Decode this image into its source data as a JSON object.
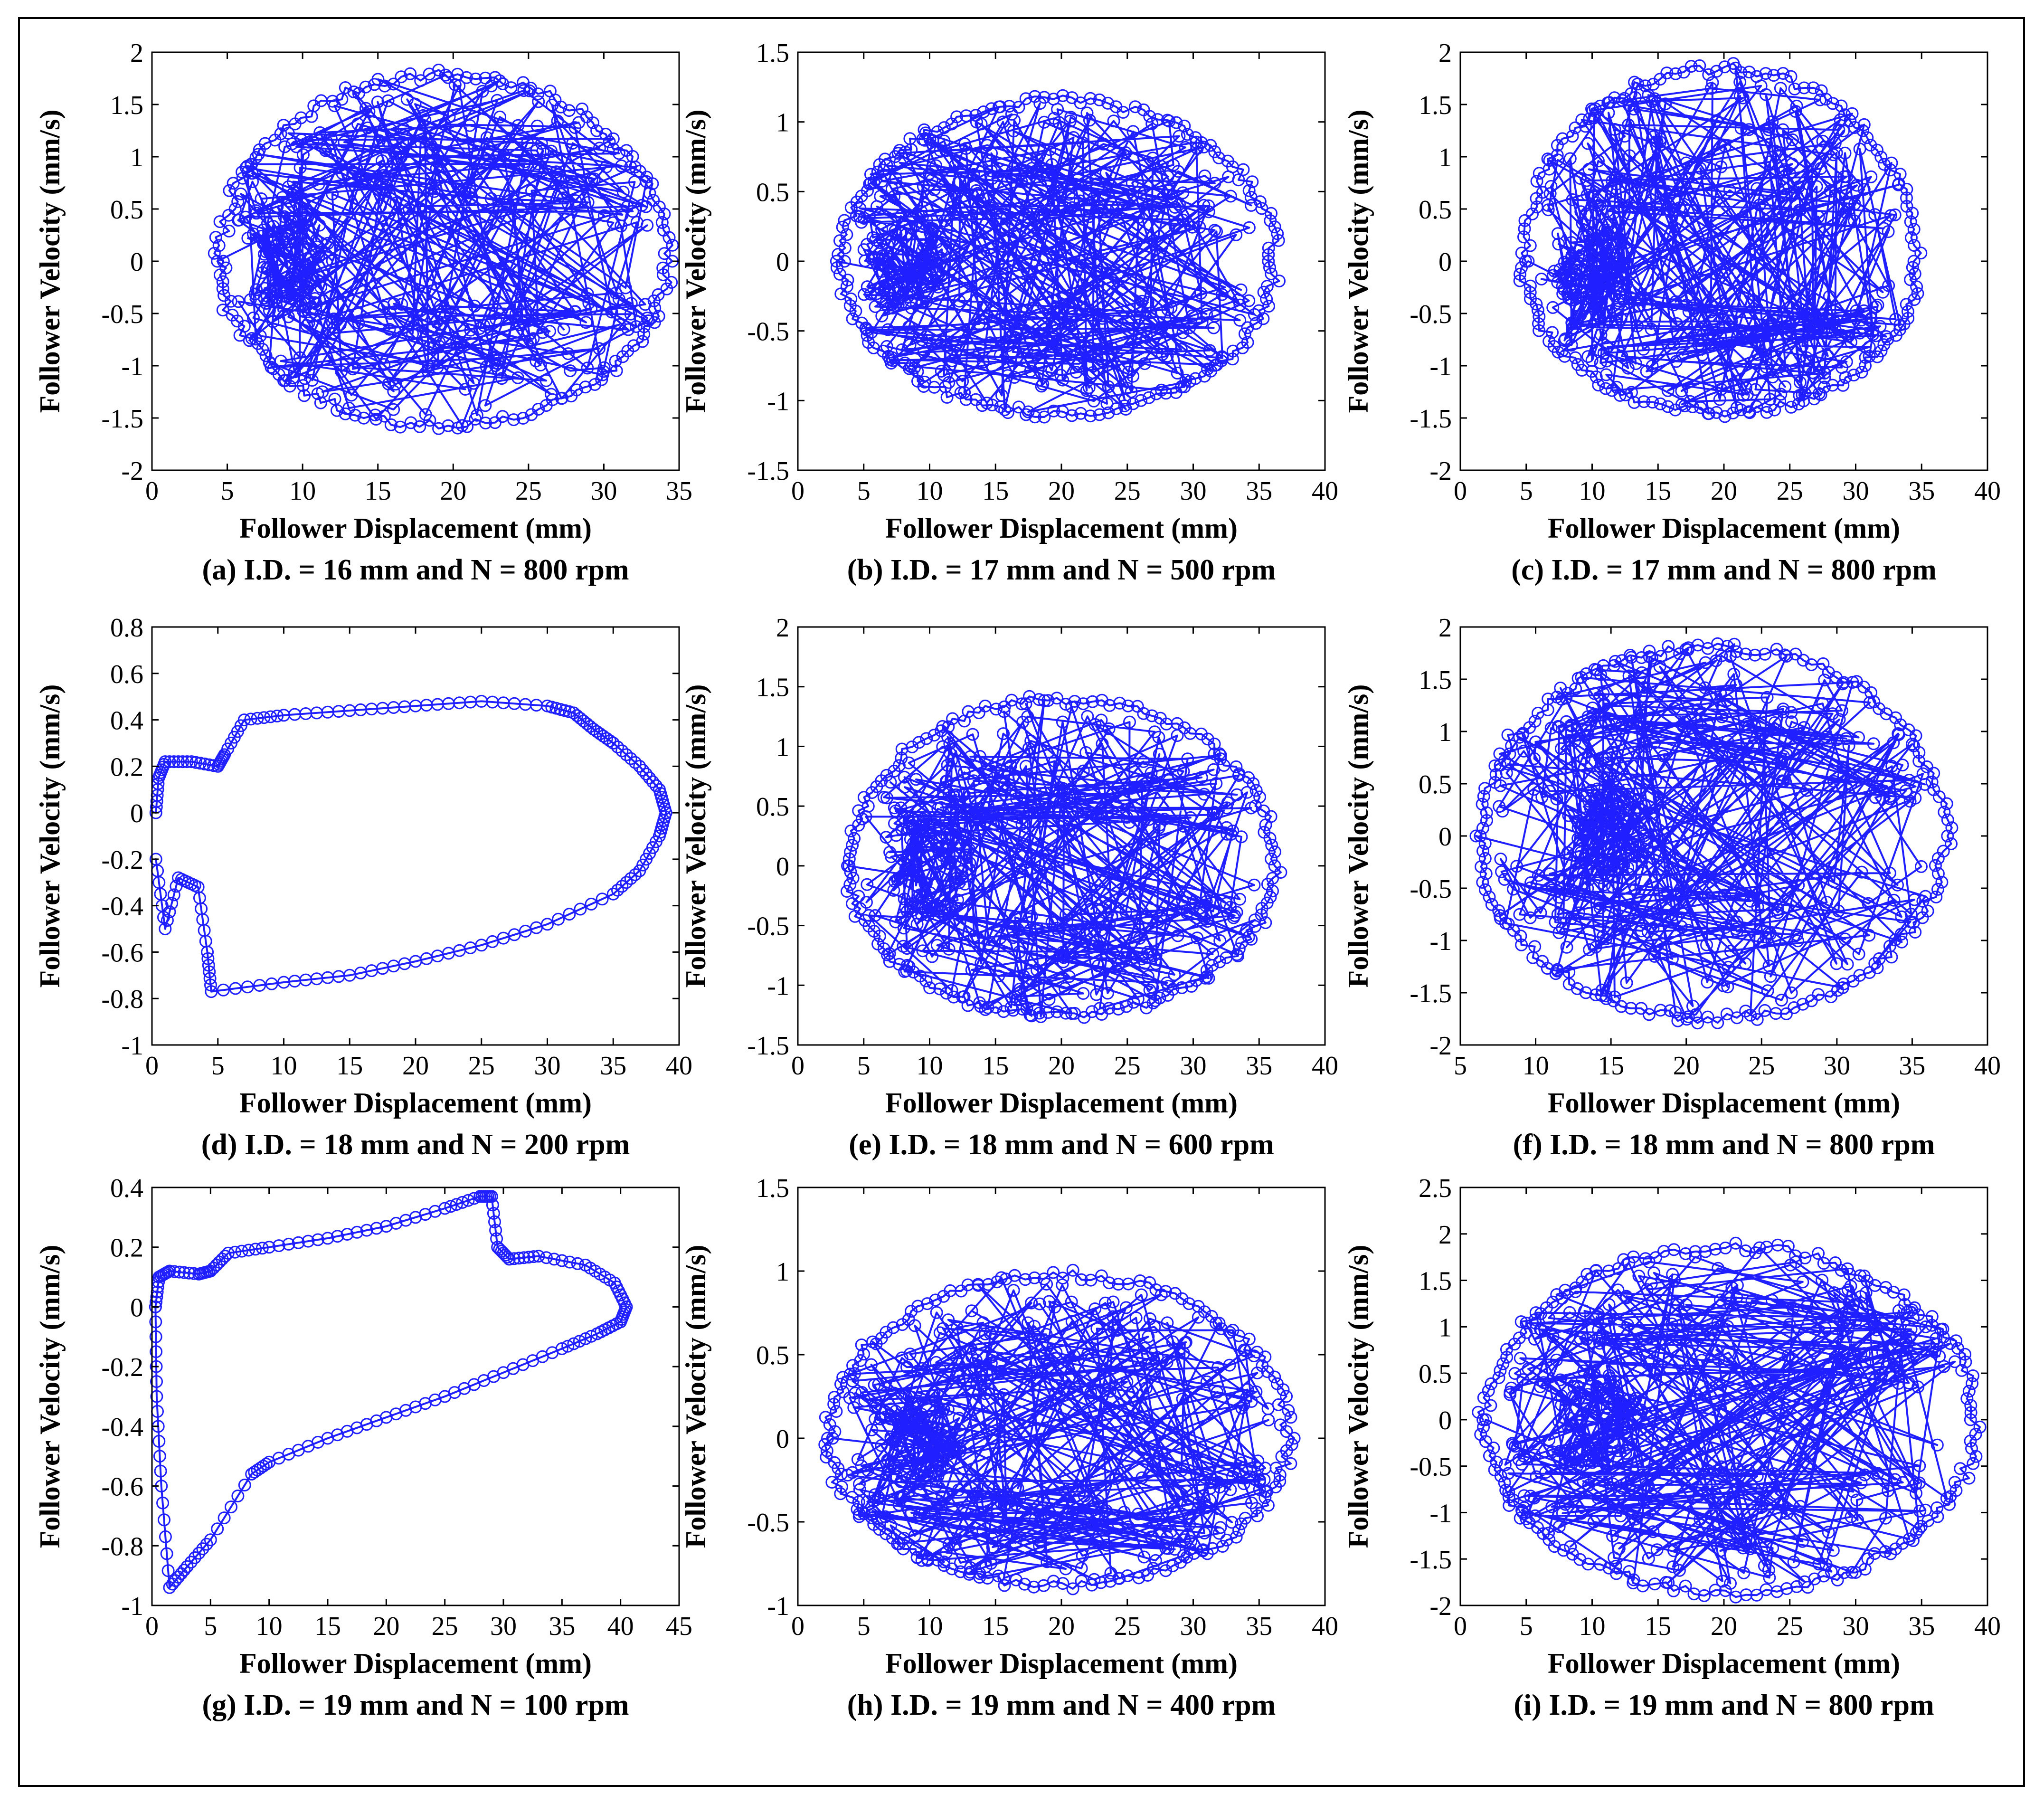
{
  "figure": {
    "line_color": "#1f1fff"
  },
  "chart_data": [
    {
      "id": "a",
      "type": "line",
      "caption": "(a) I.D. = 16 mm and N = 800 rpm",
      "xlabel": "Follower Displacement (mm)",
      "ylabel": "Follower Velocity (mm/s)",
      "xlim": [
        0,
        35
      ],
      "ylim": [
        -2,
        2
      ],
      "xticks": [
        0,
        5,
        10,
        15,
        20,
        25,
        30,
        35
      ],
      "yticks": [
        -2,
        -1.5,
        -1,
        -0.5,
        0,
        0.5,
        1,
        1.5,
        2
      ],
      "ytick_labels": [
        "-2",
        "-1.5",
        "-1",
        "-0.5",
        "0",
        "0.5",
        "1",
        "1.5",
        "2"
      ],
      "x_range": [
        4.2,
        34.5
      ],
      "vel_peak": 1.82,
      "vel_trough": -1.6,
      "rise_x": 9
    },
    {
      "id": "b",
      "type": "line",
      "caption": "(b) I.D. = 17 mm and N = 500 rpm",
      "xlabel": "Follower Displacement (mm)",
      "ylabel": "Follower Velocity (mm/s)",
      "xlim": [
        0,
        40
      ],
      "ylim": [
        -1.5,
        1.5
      ],
      "xticks": [
        0,
        5,
        10,
        15,
        20,
        25,
        30,
        35,
        40
      ],
      "yticks": [
        -1.5,
        -1,
        -0.5,
        0,
        0.5,
        1,
        1.5
      ],
      "ytick_labels": [
        "-1.5",
        "-1",
        "-0.5",
        "0",
        "0.5",
        "1",
        "1.5"
      ],
      "x_range": [
        3,
        36.5
      ],
      "vel_peak": 1.18,
      "vel_trough": -1.12,
      "rise_x": 8
    },
    {
      "id": "c",
      "type": "line",
      "caption": "(c) I.D. = 17 mm and N = 800 rpm",
      "xlabel": "Follower Displacement (mm)",
      "ylabel": "Follower Velocity (mm/s)",
      "xlim": [
        0,
        40
      ],
      "ylim": [
        -2,
        2
      ],
      "xticks": [
        0,
        5,
        10,
        15,
        20,
        25,
        30,
        35,
        40
      ],
      "yticks": [
        -2,
        -1.5,
        -1,
        -0.5,
        0,
        0.5,
        1,
        1.5,
        2
      ],
      "ytick_labels": [
        "-2",
        "-1.5",
        "-1",
        "-0.5",
        "0",
        "0.5",
        "1",
        "1.5",
        "2"
      ],
      "x_range": [
        4.5,
        35
      ],
      "vel_peak": 1.88,
      "vel_trough": -1.48,
      "rise_x": 10
    },
    {
      "id": "d",
      "type": "line",
      "caption": "(d) I.D. = 18 mm and N = 200 rpm",
      "xlabel": "Follower Displacement (mm)",
      "ylabel": "Follower Velocity (mm/s)",
      "xlim": [
        0,
        40
      ],
      "ylim": [
        -1,
        0.8
      ],
      "xticks": [
        0,
        5,
        10,
        15,
        20,
        25,
        30,
        35,
        40
      ],
      "yticks": [
        -1,
        -0.8,
        -0.6,
        -0.4,
        -0.2,
        0,
        0.2,
        0.4,
        0.6,
        0.8
      ],
      "ytick_labels": [
        "-1",
        "-0.8",
        "-0.6",
        "-0.4",
        "-0.2",
        "0",
        "0.2",
        "0.4",
        "0.6",
        "0.8"
      ],
      "loop_x": [
        0.3,
        0.5,
        1.0,
        3.0,
        5.0,
        5.5,
        7.0,
        10,
        15,
        20,
        25,
        30,
        32,
        33.5,
        35,
        37,
        38.5,
        39,
        38.5,
        37,
        35,
        30,
        25,
        20,
        15,
        10,
        4.5,
        4.2,
        3.5,
        2.0,
        1.0,
        0.3
      ],
      "loop_y": [
        0,
        0.15,
        0.22,
        0.22,
        0.2,
        0.25,
        0.4,
        0.42,
        0.44,
        0.46,
        0.48,
        0.46,
        0.43,
        0.36,
        0.3,
        0.2,
        0.1,
        0,
        -0.1,
        -0.25,
        -0.35,
        -0.48,
        -0.57,
        -0.64,
        -0.7,
        -0.73,
        -0.77,
        -0.6,
        -0.32,
        -0.28,
        -0.5,
        -0.2
      ]
    },
    {
      "id": "e",
      "type": "line",
      "caption": "(e) I.D. = 18 mm and N = 600 rpm",
      "xlabel": "Follower Displacement (mm)",
      "ylabel": "Follower Velocity (mm/s)",
      "xlim": [
        0,
        40
      ],
      "ylim": [
        -1.5,
        2
      ],
      "xticks": [
        0,
        5,
        10,
        15,
        20,
        25,
        30,
        35,
        40
      ],
      "yticks": [
        -1.5,
        -1,
        -0.5,
        0,
        0.5,
        1,
        1.5,
        2
      ],
      "ytick_labels": [
        "-1.5",
        "-1",
        "-0.5",
        "0",
        "0.5",
        "1",
        "1.5",
        "2"
      ],
      "x_range": [
        3.5,
        36.5
      ],
      "vel_peak": 1.42,
      "vel_trough": -1.28,
      "rise_x": 10
    },
    {
      "id": "f",
      "type": "line",
      "caption": "(f) I.D. = 18 mm and N = 800 rpm",
      "xlabel": "Follower Displacement (mm)",
      "ylabel": "Follower Velocity (mm/s)",
      "xlim": [
        5,
        40
      ],
      "ylim": [
        -2,
        2
      ],
      "xticks": [
        5,
        10,
        15,
        20,
        25,
        30,
        35,
        40
      ],
      "yticks": [
        -2,
        -1.5,
        -1,
        -0.5,
        0,
        0.5,
        1,
        1.5,
        2
      ],
      "ytick_labels": [
        "-2",
        "-1.5",
        "-1",
        "-0.5",
        "0",
        "0.5",
        "1",
        "1.5",
        "2"
      ],
      "x_range": [
        6,
        37.5
      ],
      "vel_peak": 1.85,
      "vel_trough": -1.78,
      "rise_x": 15
    },
    {
      "id": "g",
      "type": "line",
      "caption": "(g) I.D. = 19 mm and N = 100 rpm",
      "xlabel": "Follower Displacement (mm)",
      "ylabel": "Follower Velocity (mm/s)",
      "xlim": [
        0,
        45
      ],
      "ylim": [
        -1,
        0.4
      ],
      "xticks": [
        0,
        5,
        10,
        15,
        20,
        25,
        30,
        35,
        40,
        45
      ],
      "yticks": [
        -1,
        -0.8,
        -0.6,
        -0.4,
        -0.2,
        0,
        0.2,
        0.4
      ],
      "ytick_labels": [
        "-1",
        "-0.8",
        "-0.6",
        "-0.4",
        "-0.2",
        "0",
        "0.2",
        "0.4"
      ],
      "loop_x": [
        0.3,
        0.6,
        1.5,
        4.0,
        5.0,
        6.5,
        10,
        15,
        20,
        25,
        28,
        29,
        29.5,
        30.5,
        33,
        37,
        39.5,
        40.5,
        40,
        38,
        35,
        30,
        25,
        20,
        15,
        10,
        8.5,
        5.0,
        3.0,
        1.5,
        0.8,
        0.4,
        0.3
      ],
      "loop_y": [
        0,
        0.1,
        0.12,
        0.11,
        0.12,
        0.18,
        0.2,
        0.23,
        0.27,
        0.33,
        0.37,
        0.37,
        0.2,
        0.16,
        0.17,
        0.14,
        0.08,
        0,
        -0.05,
        -0.09,
        -0.14,
        -0.22,
        -0.3,
        -0.37,
        -0.44,
        -0.52,
        -0.56,
        -0.78,
        -0.87,
        -0.94,
        -0.6,
        -0.3,
        0
      ]
    },
    {
      "id": "h",
      "type": "line",
      "caption": "(h) I.D. = 19 mm and N = 400 rpm",
      "xlabel": "Follower Displacement (mm)",
      "ylabel": "Follower Velocity (mm/s)",
      "xlim": [
        0,
        40
      ],
      "ylim": [
        -1,
        1.5
      ],
      "xticks": [
        0,
        5,
        10,
        15,
        20,
        25,
        30,
        35,
        40
      ],
      "yticks": [
        -1,
        -0.5,
        0,
        0.5,
        1,
        1.5
      ],
      "ytick_labels": [
        "-1",
        "-0.5",
        "0",
        "0.5",
        "1",
        "1.5"
      ],
      "x_range": [
        2,
        37.5
      ],
      "vel_peak": 1.0,
      "vel_trough": -0.9,
      "rise_x": 9
    },
    {
      "id": "i",
      "type": "line",
      "caption": "(i) I.D. = 19 mm and N = 800 rpm",
      "xlabel": "Follower Displacement (mm)",
      "ylabel": "Follower Velocity (mm/s)",
      "xlim": [
        0,
        40
      ],
      "ylim": [
        -2,
        2.5
      ],
      "xticks": [
        0,
        5,
        10,
        15,
        20,
        25,
        30,
        35,
        40
      ],
      "yticks": [
        -2,
        -1.5,
        -1,
        -0.5,
        0,
        0.5,
        1,
        1.5,
        2,
        2.5
      ],
      "ytick_labels": [
        "-2",
        "-1.5",
        "-1",
        "-0.5",
        "0",
        "0.5",
        "1",
        "1.5",
        "2",
        "2.5"
      ],
      "x_range": [
        1.5,
        39.5
      ],
      "vel_peak": 1.9,
      "vel_trough": -1.9,
      "rise_x": 10
    }
  ]
}
